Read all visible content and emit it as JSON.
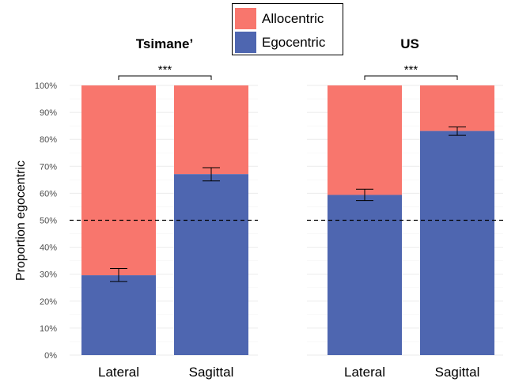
{
  "legend": {
    "items": [
      {
        "label": "Allocentric",
        "color": "#F8766D"
      },
      {
        "label": "Egocentric",
        "color": "#4E66B0"
      }
    ]
  },
  "chart_data": {
    "type": "bar",
    "stacked": true,
    "ylabel": "Proportion egocentric",
    "xlabel": "",
    "ylim": [
      0,
      1
    ],
    "y_ticks": [
      "0%",
      "10%",
      "20%",
      "30%",
      "40%",
      "50%",
      "60%",
      "70%",
      "80%",
      "90%",
      "100%"
    ],
    "reference_line": {
      "y": 0.5,
      "style": "dashed"
    },
    "grid": true,
    "legend_position": "top-center",
    "colors": {
      "Allocentric": "#F8766D",
      "Egocentric": "#4E66B0"
    },
    "facets": [
      {
        "title": "Tsimane’",
        "categories": [
          "Lateral",
          "Sagittal"
        ],
        "series": [
          {
            "name": "Egocentric",
            "values": [
              0.296,
              0.671
            ]
          },
          {
            "name": "Allocentric",
            "values": [
              0.704,
              0.329
            ]
          }
        ],
        "error_bars": [
          [
            0.273,
            0.321
          ],
          [
            0.646,
            0.695
          ]
        ],
        "significance": "***"
      },
      {
        "title": "US",
        "categories": [
          "Lateral",
          "Sagittal"
        ],
        "series": [
          {
            "name": "Egocentric",
            "values": [
              0.594,
              0.831
            ]
          },
          {
            "name": "Allocentric",
            "values": [
              0.406,
              0.169
            ]
          }
        ],
        "error_bars": [
          [
            0.573,
            0.615
          ],
          [
            0.815,
            0.846
          ]
        ],
        "significance": "***"
      }
    ]
  }
}
